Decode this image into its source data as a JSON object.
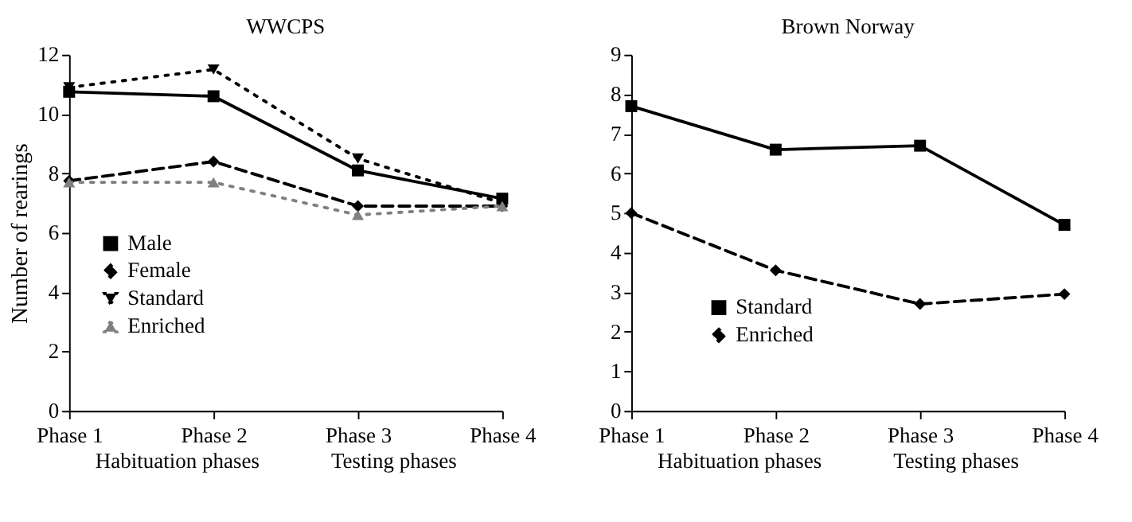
{
  "chart_data": [
    {
      "type": "line",
      "title": "WWCPS",
      "ylabel": "Number of rearings",
      "categories": [
        "Phase 1",
        "Phase 2",
        "Phase 3",
        "Phase 4"
      ],
      "ylim": [
        0,
        12
      ],
      "yticks": [
        0,
        2,
        4,
        6,
        8,
        10,
        12
      ],
      "grid": false,
      "legend": "left",
      "annotations": [
        "Habituation phases",
        "Testing phases"
      ],
      "series": [
        {
          "name": "Male",
          "color": "#000000",
          "marker": "square",
          "line_style": "solid",
          "values": [
            10.75,
            10.6,
            8.1,
            7.15
          ]
        },
        {
          "name": "Female",
          "color": "#000000",
          "marker": "diamond",
          "line_style": "dashed",
          "values": [
            7.75,
            8.4,
            6.9,
            6.9
          ]
        },
        {
          "name": "Standard",
          "color": "#000000",
          "marker": "triangle-down",
          "line_style": "dotted",
          "values": [
            10.9,
            11.5,
            8.5,
            7.0
          ]
        },
        {
          "name": "Enriched",
          "color": "#808080",
          "marker": "triangle",
          "line_style": "dotted",
          "values": [
            7.7,
            7.7,
            6.6,
            6.9
          ]
        }
      ]
    },
    {
      "type": "line",
      "title": "Brown Norway",
      "categories": [
        "Phase 1",
        "Phase 2",
        "Phase 3",
        "Phase 4"
      ],
      "ylim": [
        0,
        9
      ],
      "yticks": [
        0,
        1,
        2,
        3,
        4,
        5,
        6,
        7,
        8,
        9
      ],
      "grid": false,
      "legend": "bottom left",
      "annotations": [
        "Habituation phases",
        "Testing phases"
      ],
      "series": [
        {
          "name": "Standard",
          "color": "#000000",
          "marker": "square",
          "line_style": "solid",
          "values": [
            7.7,
            6.6,
            6.7,
            4.7
          ]
        },
        {
          "name": "Enriched",
          "color": "#000000",
          "marker": "diamond",
          "line_style": "dashed",
          "values": [
            5.0,
            3.55,
            2.7,
            2.95
          ]
        }
      ]
    }
  ]
}
